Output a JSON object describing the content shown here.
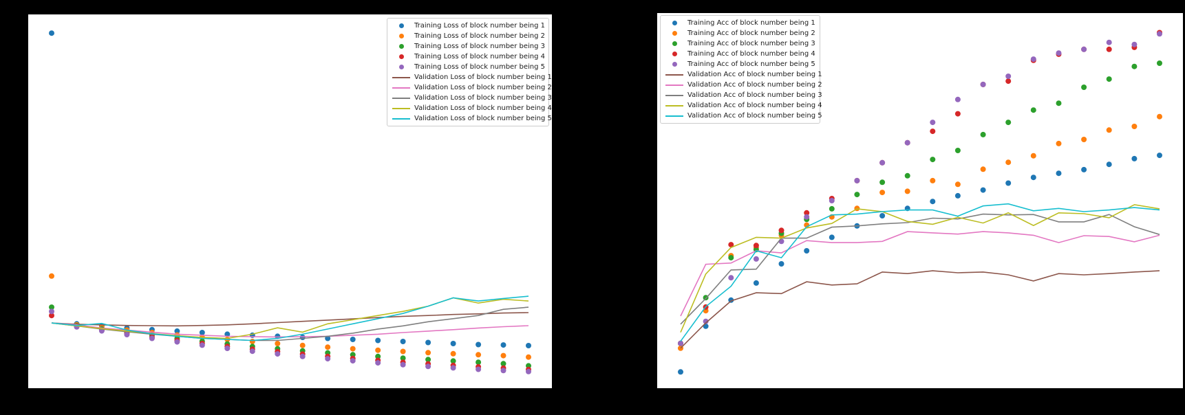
{
  "figure": {
    "background": "#000000",
    "plot_background": "#ffffff"
  },
  "charts": [
    {
      "id": "loss-chart",
      "legend": {
        "position": "upper-right",
        "items": [
          {
            "label": "Training Loss of block number being 1",
            "color": "#1f77b4",
            "marker": "dot"
          },
          {
            "label": "Training Loss of block number being 2",
            "color": "#ff7f0e",
            "marker": "dot"
          },
          {
            "label": "Training Loss of block number being 3",
            "color": "#2ca02c",
            "marker": "dot"
          },
          {
            "label": "Training Loss of block number being 4",
            "color": "#d62728",
            "marker": "dot"
          },
          {
            "label": "Training Loss of block number being 5",
            "color": "#9467bd",
            "marker": "dot"
          },
          {
            "label": "Validation Loss of block number being 1",
            "color": "#8c564b",
            "marker": "line"
          },
          {
            "label": "Validation Loss of block number being 2",
            "color": "#e377c2",
            "marker": "line"
          },
          {
            "label": "Validation Loss of block number being 3",
            "color": "#7f7f7f",
            "marker": "line"
          },
          {
            "label": "Validation Loss of block number being 4",
            "color": "#bcbd22",
            "marker": "line"
          },
          {
            "label": "Validation Loss of block number being 5",
            "color": "#17becf",
            "marker": "line"
          }
        ]
      },
      "chart_data": {
        "type": "scatter",
        "title": "",
        "xlabel": "",
        "ylabel": "",
        "x": [
          1,
          2,
          3,
          4,
          5,
          6,
          7,
          8,
          9,
          10,
          11,
          12,
          13,
          14,
          15,
          16,
          17,
          18,
          19,
          20
        ],
        "ylim": [
          0.95,
          2.75
        ],
        "grid": false,
        "axes_ticks_visible": false,
        "scatter_series": [
          {
            "name": "Training Loss of block number being 1",
            "color": "#1f77b4",
            "values": [
              2.66,
              1.26,
              1.25,
              1.24,
              1.232,
              1.225,
              1.218,
              1.21,
              1.205,
              1.2,
              1.195,
              1.19,
              1.185,
              1.18,
              1.175,
              1.17,
              1.165,
              1.16,
              1.158,
              1.155
            ]
          },
          {
            "name": "Training Loss of block number being 2",
            "color": "#ff7f0e",
            "values": [
              1.49,
              1.255,
              1.243,
              1.23,
              1.218,
              1.206,
              1.195,
              1.185,
              1.175,
              1.165,
              1.156,
              1.148,
              1.14,
              1.133,
              1.127,
              1.121,
              1.116,
              1.111,
              1.107,
              1.1
            ]
          },
          {
            "name": "Training Loss of block number being 3",
            "color": "#2ca02c",
            "values": [
              1.34,
              1.25,
              1.235,
              1.22,
              1.205,
              1.19,
              1.176,
              1.163,
              1.151,
              1.14,
              1.13,
              1.12,
              1.111,
              1.103,
              1.095,
              1.088,
              1.081,
              1.075,
              1.068,
              1.058
            ]
          },
          {
            "name": "Training Loss of block number being 4",
            "color": "#d62728",
            "values": [
              1.3,
              1.248,
              1.23,
              1.213,
              1.196,
              1.18,
              1.165,
              1.151,
              1.138,
              1.126,
              1.114,
              1.103,
              1.093,
              1.084,
              1.075,
              1.067,
              1.06,
              1.053,
              1.047,
              1.04
            ]
          },
          {
            "name": "Training Loss of block number being 5",
            "color": "#9467bd",
            "values": [
              1.32,
              1.245,
              1.226,
              1.208,
              1.19,
              1.173,
              1.157,
              1.142,
              1.128,
              1.115,
              1.103,
              1.092,
              1.082,
              1.072,
              1.063,
              1.055,
              1.048,
              1.041,
              1.035,
              1.03
            ]
          }
        ],
        "line_series": [
          {
            "name": "Validation Loss of block number being 1",
            "color": "#8c564b",
            "values": [
              1.264,
              1.258,
              1.255,
              1.252,
              1.251,
              1.25,
              1.252,
              1.255,
              1.26,
              1.266,
              1.272,
              1.278,
              1.284,
              1.29,
              1.296,
              1.3,
              1.305,
              1.308,
              1.312,
              1.314
            ]
          },
          {
            "name": "Validation Loss of block number being 2",
            "color": "#e377c2",
            "values": [
              1.264,
              1.255,
              1.24,
              1.23,
              1.22,
              1.21,
              1.205,
              1.2,
              1.198,
              1.197,
              1.198,
              1.2,
              1.205,
              1.21,
              1.218,
              1.225,
              1.232,
              1.24,
              1.246,
              1.251
            ]
          },
          {
            "name": "Validation Loss of block number being 3",
            "color": "#7f7f7f",
            "values": [
              1.264,
              1.25,
              1.235,
              1.222,
              1.21,
              1.2,
              1.19,
              1.185,
              1.18,
              1.18,
              1.19,
              1.2,
              1.215,
              1.235,
              1.25,
              1.27,
              1.285,
              1.3,
              1.33,
              1.34
            ]
          },
          {
            "name": "Validation Loss of block number being 4",
            "color": "#bcbd22",
            "values": [
              1.264,
              1.25,
              1.237,
              1.225,
              1.213,
              1.203,
              1.195,
              1.19,
              1.21,
              1.241,
              1.22,
              1.26,
              1.28,
              1.3,
              1.32,
              1.345,
              1.385,
              1.36,
              1.378,
              1.37
            ]
          },
          {
            "name": "Validation Loss of block number being 5",
            "color": "#17becf",
            "values": [
              1.264,
              1.252,
              1.262,
              1.23,
              1.212,
              1.2,
              1.19,
              1.185,
              1.18,
              1.19,
              1.21,
              1.235,
              1.26,
              1.285,
              1.31,
              1.345,
              1.385,
              1.37,
              1.382,
              1.393
            ]
          }
        ]
      }
    },
    {
      "id": "accuracy-chart",
      "legend": {
        "position": "upper-left",
        "items": [
          {
            "label": "Training Acc of block number being 1",
            "color": "#1f77b4",
            "marker": "dot"
          },
          {
            "label": "Training Acc of block number being 2",
            "color": "#ff7f0e",
            "marker": "dot"
          },
          {
            "label": "Training Acc of block number being 3",
            "color": "#2ca02c",
            "marker": "dot"
          },
          {
            "label": "Training Acc of block number being 4",
            "color": "#d62728",
            "marker": "dot"
          },
          {
            "label": "Training Acc of block number being 5",
            "color": "#9467bd",
            "marker": "dot"
          },
          {
            "label": "Validation Acc of block number being 1",
            "color": "#8c564b",
            "marker": "line"
          },
          {
            "label": "Validation Acc of block number being 2",
            "color": "#e377c2",
            "marker": "line"
          },
          {
            "label": "Validation Acc of block number being 3",
            "color": "#7f7f7f",
            "marker": "line"
          },
          {
            "label": "Validation Acc of block number being 4",
            "color": "#bcbd22",
            "marker": "line"
          },
          {
            "label": "Validation Acc of block number being 5",
            "color": "#17becf",
            "marker": "line"
          }
        ]
      },
      "chart_data": {
        "type": "scatter",
        "title": "",
        "xlabel": "",
        "ylabel": "",
        "x": [
          1,
          2,
          3,
          4,
          5,
          6,
          7,
          8,
          9,
          10,
          11,
          12,
          13,
          14,
          15,
          16,
          17,
          18,
          19,
          20
        ],
        "ylim": [
          0.08,
          1.0
        ],
        "grid": false,
        "axes_ticks_visible": false,
        "scatter_series": [
          {
            "name": "Training Acc of block number being 1",
            "color": "#1f77b4",
            "values": [
              0.12,
              0.232,
              0.296,
              0.338,
              0.385,
              0.417,
              0.45,
              0.478,
              0.503,
              0.521,
              0.538,
              0.552,
              0.566,
              0.583,
              0.597,
              0.607,
              0.616,
              0.629,
              0.643,
              0.651
            ]
          },
          {
            "name": "Training Acc of block number being 2",
            "color": "#ff7f0e",
            "values": [
              0.178,
              0.27,
              0.405,
              0.425,
              0.455,
              0.48,
              0.5,
              0.521,
              0.56,
              0.563,
              0.589,
              0.58,
              0.617,
              0.634,
              0.65,
              0.68,
              0.69,
              0.713,
              0.722,
              0.746
            ]
          },
          {
            "name": "Training Acc of block number being 3",
            "color": "#2ca02c",
            "values": [
              0.19,
              0.302,
              0.4,
              0.42,
              0.46,
              0.494,
              0.52,
              0.555,
              0.585,
              0.601,
              0.641,
              0.663,
              0.702,
              0.732,
              0.762,
              0.779,
              0.818,
              0.838,
              0.869,
              0.877
            ]
          },
          {
            "name": "Training Acc of block number being 4",
            "color": "#d62728",
            "values": [
              0.19,
              0.279,
              0.432,
              0.43,
              0.467,
              0.51,
              0.545,
              0.589,
              0.633,
              0.682,
              0.71,
              0.753,
              0.825,
              0.833,
              0.884,
              0.899,
              0.911,
              0.911,
              0.916,
              0.952
            ]
          },
          {
            "name": "Training Acc of block number being 5",
            "color": "#9467bd",
            "values": [
              0.19,
              0.244,
              0.351,
              0.397,
              0.44,
              0.5,
              0.54,
              0.589,
              0.633,
              0.682,
              0.732,
              0.788,
              0.825,
              0.845,
              0.887,
              0.902,
              0.911,
              0.928,
              0.923,
              0.949
            ]
          }
        ],
        "line_series": [
          {
            "name": "Validation Acc of block number being 1",
            "color": "#8c564b",
            "values": [
              0.178,
              0.24,
              0.294,
              0.314,
              0.312,
              0.341,
              0.333,
              0.336,
              0.365,
              0.361,
              0.368,
              0.363,
              0.365,
              0.358,
              0.343,
              0.361,
              0.358,
              0.361,
              0.365,
              0.368
            ]
          },
          {
            "name": "Validation Acc of block number being 2",
            "color": "#e377c2",
            "values": [
              0.257,
              0.384,
              0.387,
              0.417,
              0.412,
              0.442,
              0.437,
              0.437,
              0.44,
              0.464,
              0.461,
              0.458,
              0.464,
              0.461,
              0.455,
              0.437,
              0.454,
              0.452,
              0.439,
              0.455
            ]
          },
          {
            "name": "Validation Acc of block number being 3",
            "color": "#7f7f7f",
            "values": [
              0.237,
              0.3,
              0.37,
              0.372,
              0.448,
              0.448,
              0.475,
              0.478,
              0.483,
              0.486,
              0.497,
              0.495,
              0.507,
              0.505,
              0.506,
              0.488,
              0.488,
              0.506,
              0.476,
              0.457
            ]
          },
          {
            "name": "Validation Acc of block number being 4",
            "color": "#bcbd22",
            "values": [
              0.217,
              0.36,
              0.425,
              0.45,
              0.448,
              0.473,
              0.484,
              0.52,
              0.513,
              0.489,
              0.482,
              0.499,
              0.485,
              0.51,
              0.479,
              0.51,
              0.508,
              0.498,
              0.53,
              0.52
            ]
          },
          {
            "name": "Validation Acc of block number being 5",
            "color": "#17becf",
            "values": [
              0.195,
              0.28,
              0.33,
              0.417,
              0.4,
              0.476,
              0.505,
              0.507,
              0.513,
              0.517,
              0.517,
              0.502,
              0.527,
              0.532,
              0.515,
              0.521,
              0.513,
              0.517,
              0.523,
              0.517
            ]
          }
        ]
      }
    }
  ]
}
